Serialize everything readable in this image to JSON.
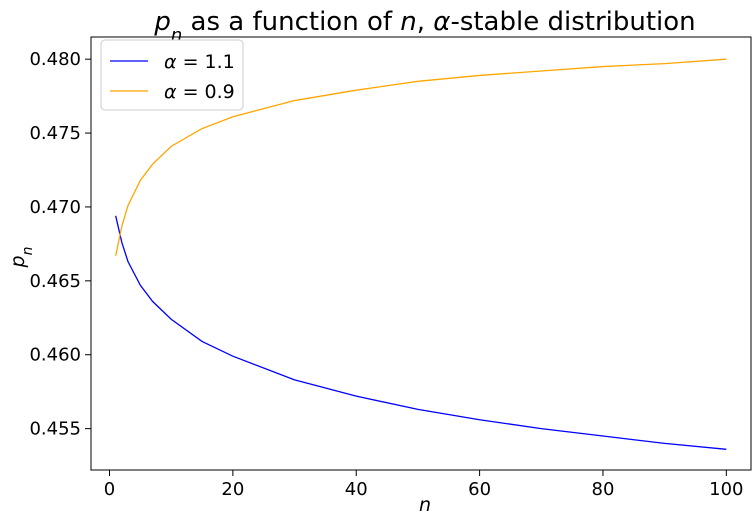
{
  "chart_data": {
    "type": "line",
    "title": "p_n as a function of n, α-stable distribution",
    "title_parts": {
      "p": "p",
      "sub": "n",
      "middle": " as a function of ",
      "n": "n",
      "comma": ", ",
      "alpha": "α",
      "rest": "-stable distribution"
    },
    "xlabel": "n",
    "ylabel": {
      "base": "p",
      "sub": "n"
    },
    "xlim": [
      -3,
      104
    ],
    "ylim": [
      0.4522,
      0.4815
    ],
    "xticks": [
      0,
      20,
      40,
      60,
      80,
      100
    ],
    "xtick_labels": [
      "0",
      "20",
      "40",
      "60",
      "80",
      "100"
    ],
    "yticks": [
      0.455,
      0.46,
      0.465,
      0.47,
      0.475,
      0.48
    ],
    "ytick_labels": [
      "0.455",
      "0.460",
      "0.465",
      "0.470",
      "0.475",
      "0.480"
    ],
    "grid": false,
    "legend_position": "upper-left",
    "series": [
      {
        "name": "α = 1.1",
        "legend_alpha": "α",
        "legend_rest": " = 1.1",
        "color": "#0000ff",
        "x": [
          1,
          2,
          3,
          5,
          7,
          10,
          15,
          20,
          30,
          40,
          50,
          60,
          70,
          80,
          90,
          100
        ],
        "y": [
          0.4694,
          0.4676,
          0.4663,
          0.4647,
          0.4636,
          0.4624,
          0.4609,
          0.4599,
          0.4583,
          0.4572,
          0.4563,
          0.4556,
          0.455,
          0.4545,
          0.454,
          0.4536
        ]
      },
      {
        "name": "α = 0.9",
        "legend_alpha": "α",
        "legend_rest": " = 0.9",
        "color": "#ffa500",
        "x": [
          1,
          2,
          3,
          5,
          7,
          10,
          15,
          20,
          30,
          40,
          50,
          60,
          70,
          80,
          90,
          100
        ],
        "y": [
          0.4667,
          0.4687,
          0.4701,
          0.4718,
          0.4729,
          0.4741,
          0.4753,
          0.4761,
          0.4772,
          0.4779,
          0.4785,
          0.4789,
          0.4792,
          0.4795,
          0.4797,
          0.48
        ]
      }
    ]
  }
}
